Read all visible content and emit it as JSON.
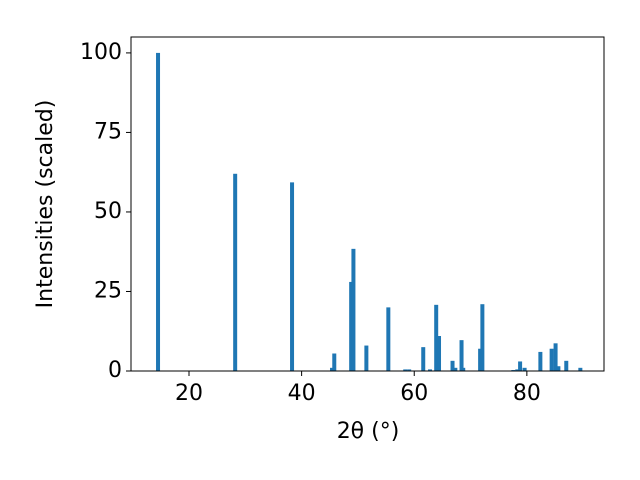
{
  "chart_data": {
    "type": "bar",
    "xlabel": "2θ (°)",
    "ylabel": "Intensities (scaled)",
    "x": [
      14.5,
      28.2,
      38.3,
      45.4,
      45.8,
      48.8,
      49.2,
      51.5,
      55.4,
      58.4,
      59.1,
      61.6,
      62.8,
      63.9,
      64.4,
      66.8,
      67.3,
      68.4,
      68.7,
      71.7,
      72.1,
      77.6,
      78.3,
      78.8,
      79.6,
      82.4,
      84.4,
      85.1,
      85.6,
      87.0,
      89.5
    ],
    "values": [
      100,
      62,
      59.3,
      1,
      5.5,
      28,
      38.4,
      8,
      20,
      0.5,
      0.5,
      7.5,
      0.5,
      20.8,
      11,
      3.2,
      1,
      9.7,
      1,
      7,
      21,
      0.3,
      0.5,
      3,
      1,
      6,
      7,
      8.7,
      1.5,
      3.2,
      1
    ],
    "color": "#1f77b4",
    "xlim": [
      9.7,
      93.7
    ],
    "ylim": [
      0,
      105
    ],
    "xticks": [
      20,
      40,
      60,
      80
    ],
    "yticks": [
      0,
      25,
      50,
      75,
      100
    ]
  }
}
